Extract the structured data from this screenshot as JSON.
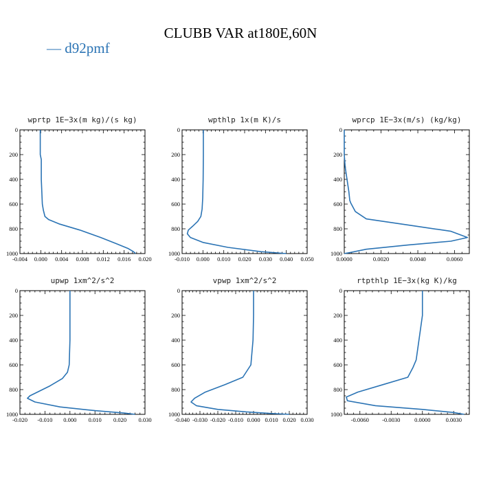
{
  "title": "CLUBB VAR at180E,60N",
  "legend": {
    "marker": "—",
    "label": "d92pmf",
    "color": "#2a73b4"
  },
  "chart_data": [
    {
      "type": "line",
      "title": "wprtp   1E−3x(m kg)/(s kg)",
      "xlim": [
        -0.004,
        0.02
      ],
      "ylim": [
        1000,
        0
      ],
      "xticks": [
        -0.004,
        0.0,
        0.004,
        0.008,
        0.012,
        0.016,
        0.02
      ],
      "xtick_labels": [
        "-0.004",
        "0.000",
        "0.004",
        "0.008",
        "0.012",
        "0.016",
        "0.020"
      ],
      "yticks": [
        0,
        200,
        400,
        600,
        800,
        1000
      ],
      "ytick_labels": [
        "0",
        "200",
        "400",
        "600",
        "800",
        "1000"
      ],
      "series": [
        {
          "name": "d92pmf",
          "x": [
            -0.0001,
            -0.0001,
            0.0001,
            0.0001,
            0.0002,
            0.0003,
            0.0005,
            0.0008,
            0.0015,
            0.0035,
            0.0075,
            0.0115,
            0.0145,
            0.0168,
            0.0178,
            0.0182
          ],
          "y": [
            0,
            200,
            240,
            400,
            500,
            600,
            650,
            700,
            725,
            760,
            810,
            870,
            920,
            960,
            985,
            1000
          ]
        }
      ]
    },
    {
      "type": "line",
      "title": "wpthlp   1x(m K)/s",
      "xlim": [
        -0.01,
        0.05
      ],
      "ylim": [
        1000,
        0
      ],
      "xticks": [
        -0.01,
        0.0,
        0.01,
        0.02,
        0.03,
        0.04,
        0.05
      ],
      "xtick_labels": [
        "-0.010",
        "0.000",
        "0.010",
        "0.020",
        "0.030",
        "0.040",
        "0.050"
      ],
      "yticks": [
        0,
        200,
        400,
        600,
        800,
        1000
      ],
      "ytick_labels": [
        "0",
        "200",
        "400",
        "600",
        "800",
        "1000"
      ],
      "series": [
        {
          "name": "d92pmf",
          "x": [
            0.0002,
            0.0002,
            0.0001,
            -0.0001,
            -0.0004,
            -0.001,
            -0.0025,
            -0.005,
            -0.007,
            -0.0075,
            -0.006,
            0.0,
            0.012,
            0.028,
            0.04
          ],
          "y": [
            0,
            200,
            400,
            550,
            640,
            700,
            740,
            780,
            810,
            840,
            870,
            910,
            950,
            985,
            1000
          ]
        }
      ]
    },
    {
      "type": "line",
      "title": "wprcp   1E−3x(m/s) (kg/kg)",
      "xlim": [
        0.0,
        0.0068
      ],
      "ylim": [
        1000,
        0
      ],
      "xticks": [
        0.0,
        0.002,
        0.004,
        0.006
      ],
      "xtick_labels": [
        "0.0000",
        "0.0020",
        "0.0040",
        "0.0060"
      ],
      "yticks": [
        0,
        200,
        400,
        600,
        800,
        1000
      ],
      "ytick_labels": [
        "0",
        "200",
        "400",
        "600",
        "800",
        "1000"
      ],
      "series": [
        {
          "name": "d92pmf",
          "x": [
            0.0,
            0.0,
            5e-05,
            0.00015,
            0.00025,
            0.0003,
            0.00035,
            0.0006,
            0.0012,
            0.0035,
            0.0058,
            0.0067,
            0.0058,
            0.0035,
            0.0012,
            0.0002,
            0.0
          ],
          "y": [
            0,
            200,
            300,
            400,
            500,
            570,
            590,
            660,
            720,
            770,
            820,
            870,
            900,
            930,
            965,
            995,
            1000
          ]
        }
      ]
    },
    {
      "type": "line",
      "title": "upwp   1xm^2/s^2",
      "xlim": [
        -0.02,
        0.03
      ],
      "ylim": [
        1000,
        0
      ],
      "xticks": [
        -0.02,
        -0.01,
        0.0,
        0.01,
        0.02,
        0.03
      ],
      "xtick_labels": [
        "-0.020",
        "-0.010",
        "0.000",
        "0.010",
        "0.020",
        "0.030"
      ],
      "yticks": [
        0,
        200,
        400,
        600,
        800,
        1000
      ],
      "ytick_labels": [
        "0",
        "200",
        "400",
        "600",
        "800",
        "1000"
      ],
      "series": [
        {
          "name": "d92pmf",
          "x": [
            0.0,
            0.0,
            0.0,
            -0.0003,
            -0.001,
            -0.003,
            -0.008,
            -0.013,
            -0.016,
            -0.017,
            -0.014,
            -0.004,
            0.01,
            0.022,
            0.026
          ],
          "y": [
            0,
            200,
            400,
            600,
            660,
            710,
            770,
            820,
            850,
            870,
            900,
            940,
            970,
            990,
            1000
          ]
        }
      ]
    },
    {
      "type": "line",
      "title": "vpwp   1xm^2/s^2",
      "xlim": [
        -0.04,
        0.03
      ],
      "ylim": [
        1000,
        0
      ],
      "xticks": [
        -0.04,
        -0.03,
        -0.02,
        -0.01,
        0.0,
        0.01,
        0.02,
        0.03
      ],
      "xtick_labels": [
        "-0.040",
        "-0.030",
        "-0.020",
        "-0.010",
        "0.000",
        "0.010",
        "0.020",
        "0.030"
      ],
      "yticks": [
        0,
        200,
        400,
        600,
        800,
        1000
      ],
      "ytick_labels": [
        "0",
        "200",
        "400",
        "600",
        "800",
        "1000"
      ],
      "series": [
        {
          "name": "d92pmf",
          "x": [
            0.0,
            0.0,
            -0.0003,
            -0.0015,
            -0.006,
            -0.016,
            -0.027,
            -0.033,
            -0.035,
            -0.032,
            -0.02,
            -0.004,
            0.01,
            0.02
          ],
          "y": [
            0,
            200,
            400,
            600,
            700,
            760,
            820,
            870,
            900,
            930,
            960,
            980,
            993,
            1000
          ]
        }
      ]
    },
    {
      "type": "line",
      "title": "rtpthlp   1E−3x(kg K)/kg",
      "xlim": [
        -0.0075,
        0.0045
      ],
      "ylim": [
        1000,
        0
      ],
      "xticks": [
        -0.006,
        -0.003,
        0.0,
        0.003
      ],
      "xtick_labels": [
        "-0.0060",
        "-0.0030",
        "0.0000",
        "0.0030"
      ],
      "yticks": [
        0,
        200,
        400,
        600,
        800,
        1000
      ],
      "ytick_labels": [
        "0",
        "200",
        "400",
        "600",
        "800",
        "1000"
      ],
      "series": [
        {
          "name": "d92pmf",
          "x": [
            0.0,
            0.0,
            -0.0002,
            -0.0006,
            -0.0009,
            -0.0014,
            -0.0038,
            -0.0062,
            -0.0073,
            -0.0072,
            -0.0045,
            0.0,
            0.003,
            0.004
          ],
          "y": [
            0,
            200,
            320,
            560,
            620,
            700,
            760,
            820,
            860,
            890,
            930,
            960,
            985,
            1000
          ]
        }
      ]
    }
  ]
}
